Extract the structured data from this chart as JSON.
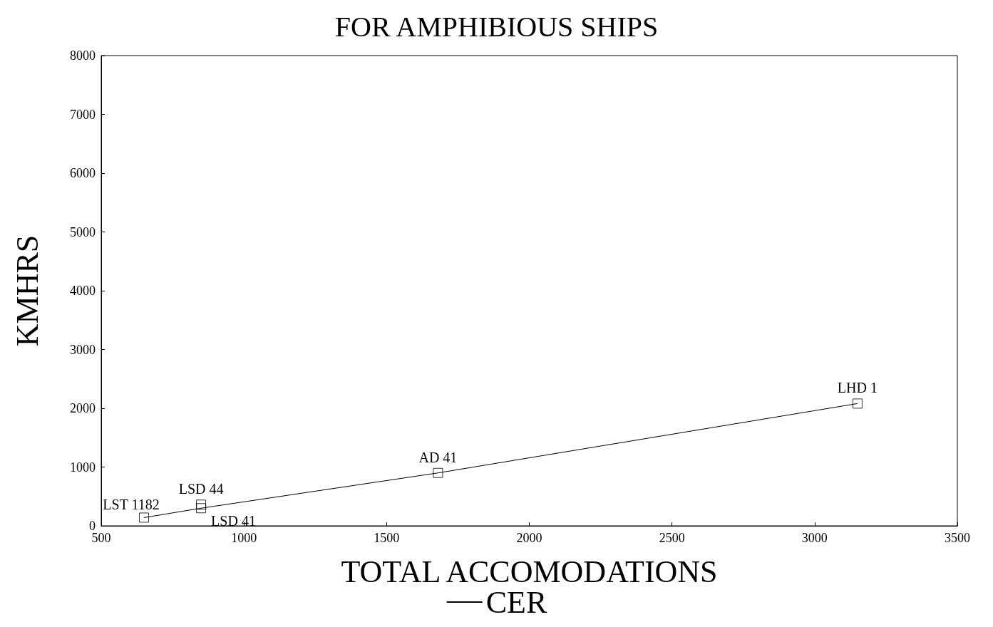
{
  "chart_data": {
    "type": "scatter",
    "title": "FOR AMPHIBIOUS SHIPS",
    "xlabel": "TOTAL ACCOMODATIONS",
    "ylabel": "KMHRS",
    "series": [
      {
        "color": "#000000",
        "marker": "square",
        "x": [
          650,
          850,
          850,
          1680,
          3150
        ],
        "values": [
          140,
          360,
          300,
          900,
          2080
        ]
      },
      {
        "type": "line",
        "name": "CER",
        "color": "#000000",
        "marker": "none",
        "line_style": "solid",
        "x": [
          650,
          850,
          1680,
          3150
        ],
        "values": [
          140,
          300,
          900,
          2080
        ]
      }
    ],
    "annotations": [
      {
        "text": "LST 1182",
        "x": 650,
        "y": 140
      },
      {
        "text": "LSD 44",
        "x": 850,
        "y": 360
      },
      {
        "text": "LSD 41",
        "x": 850,
        "y": 300
      },
      {
        "text": "AD 41",
        "x": 1680,
        "y": 900
      },
      {
        "text": "LHD 1",
        "x": 3150,
        "y": 2080
      }
    ],
    "xlim": [
      500,
      3500
    ],
    "xticks": [
      500,
      1000,
      1500,
      2000,
      2500,
      3000,
      3500
    ],
    "ylim": [
      0,
      8000
    ],
    "yticks": [
      0,
      1000,
      2000,
      3000,
      4000,
      5000,
      6000,
      7000,
      8000
    ],
    "grid": false,
    "legend": "bottom"
  }
}
